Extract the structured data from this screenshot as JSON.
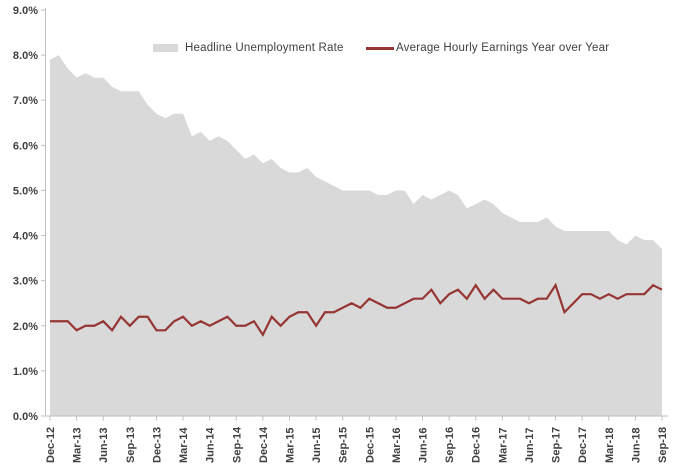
{
  "legend": {
    "items": [
      {
        "label": "Headline Unemployment Rate",
        "swatch": "area",
        "color": "#d9d9d9"
      },
      {
        "label": "Average Hourly Earnings Year over Year",
        "swatch": "line",
        "color": "#963634"
      }
    ]
  },
  "axes": {
    "y_tick_labels": [
      "0.0%",
      "1.0%",
      "2.0%",
      "3.0%",
      "4.0%",
      "5.0%",
      "6.0%",
      "7.0%",
      "8.0%",
      "9.0%"
    ],
    "x_label_every": 3,
    "axis_color": "#bfbfbf",
    "label_color": "#404040"
  },
  "chart_data": {
    "type": "area",
    "title": "",
    "xlabel": "",
    "ylabel": "",
    "ylim": [
      0,
      9
    ],
    "grid": false,
    "legend_position": "top",
    "x": [
      "Dec-12",
      "Jan-13",
      "Feb-13",
      "Mar-13",
      "Apr-13",
      "May-13",
      "Jun-13",
      "Jul-13",
      "Aug-13",
      "Sep-13",
      "Oct-13",
      "Nov-13",
      "Dec-13",
      "Jan-14",
      "Feb-14",
      "Mar-14",
      "Apr-14",
      "May-14",
      "Jun-14",
      "Jul-14",
      "Aug-14",
      "Sep-14",
      "Oct-14",
      "Nov-14",
      "Dec-14",
      "Jan-15",
      "Feb-15",
      "Mar-15",
      "Apr-15",
      "May-15",
      "Jun-15",
      "Jul-15",
      "Aug-15",
      "Sep-15",
      "Oct-15",
      "Nov-15",
      "Dec-15",
      "Jan-16",
      "Feb-16",
      "Mar-16",
      "Apr-16",
      "May-16",
      "Jun-16",
      "Jul-16",
      "Aug-16",
      "Sep-16",
      "Oct-16",
      "Nov-16",
      "Dec-16",
      "Jan-17",
      "Feb-17",
      "Mar-17",
      "Apr-17",
      "May-17",
      "Jun-17",
      "Jul-17",
      "Aug-17",
      "Sep-17",
      "Oct-17",
      "Nov-17",
      "Dec-17",
      "Jan-18",
      "Feb-18",
      "Mar-18",
      "Apr-18",
      "May-18",
      "Jun-18",
      "Jul-18",
      "Aug-18",
      "Sep-18"
    ],
    "x_tick_labels_shown": [
      "Dec-12",
      "Mar-13",
      "Jun-13",
      "Sep-13",
      "Dec-13",
      "Mar-14",
      "Jun-14",
      "Sep-14",
      "Dec-14",
      "Mar-15",
      "Jun-15",
      "Sep-15",
      "Dec-15",
      "Mar-16",
      "Jun-16",
      "Sep-16",
      "Dec-16",
      "Mar-17",
      "Jun-17",
      "Sep-17",
      "Dec-17",
      "Mar-18",
      "Jun-18",
      "Sep-18"
    ],
    "series": [
      {
        "name": "Headline Unemployment Rate",
        "type": "area",
        "color": "#d9d9d9",
        "values": [
          7.9,
          8.0,
          7.7,
          7.5,
          7.6,
          7.5,
          7.5,
          7.3,
          7.2,
          7.2,
          7.2,
          6.9,
          6.7,
          6.6,
          6.7,
          6.7,
          6.2,
          6.3,
          6.1,
          6.2,
          6.1,
          5.9,
          5.7,
          5.8,
          5.6,
          5.7,
          5.5,
          5.4,
          5.4,
          5.5,
          5.3,
          5.2,
          5.1,
          5.0,
          5.0,
          5.0,
          5.0,
          4.9,
          4.9,
          5.0,
          5.0,
          4.7,
          4.9,
          4.8,
          4.9,
          5.0,
          4.9,
          4.6,
          4.7,
          4.8,
          4.7,
          4.5,
          4.4,
          4.3,
          4.3,
          4.3,
          4.4,
          4.2,
          4.1,
          4.1,
          4.1,
          4.1,
          4.1,
          4.1,
          3.9,
          3.8,
          4.0,
          3.9,
          3.9,
          3.7
        ]
      },
      {
        "name": "Average Hourly Earnings Year over Year",
        "type": "line",
        "color": "#963634",
        "values": [
          2.1,
          2.1,
          2.1,
          1.9,
          2.0,
          2.0,
          2.1,
          1.9,
          2.2,
          2.0,
          2.2,
          2.2,
          1.9,
          1.9,
          2.1,
          2.2,
          2.0,
          2.1,
          2.0,
          2.1,
          2.2,
          2.0,
          2.0,
          2.1,
          1.8,
          2.2,
          2.0,
          2.2,
          2.3,
          2.3,
          2.0,
          2.3,
          2.3,
          2.4,
          2.5,
          2.4,
          2.6,
          2.5,
          2.4,
          2.4,
          2.5,
          2.6,
          2.6,
          2.8,
          2.5,
          2.7,
          2.8,
          2.6,
          2.9,
          2.6,
          2.8,
          2.6,
          2.6,
          2.6,
          2.5,
          2.6,
          2.6,
          2.9,
          2.3,
          2.5,
          2.7,
          2.7,
          2.6,
          2.7,
          2.6,
          2.7,
          2.7,
          2.7,
          2.9,
          2.8
        ]
      }
    ]
  }
}
